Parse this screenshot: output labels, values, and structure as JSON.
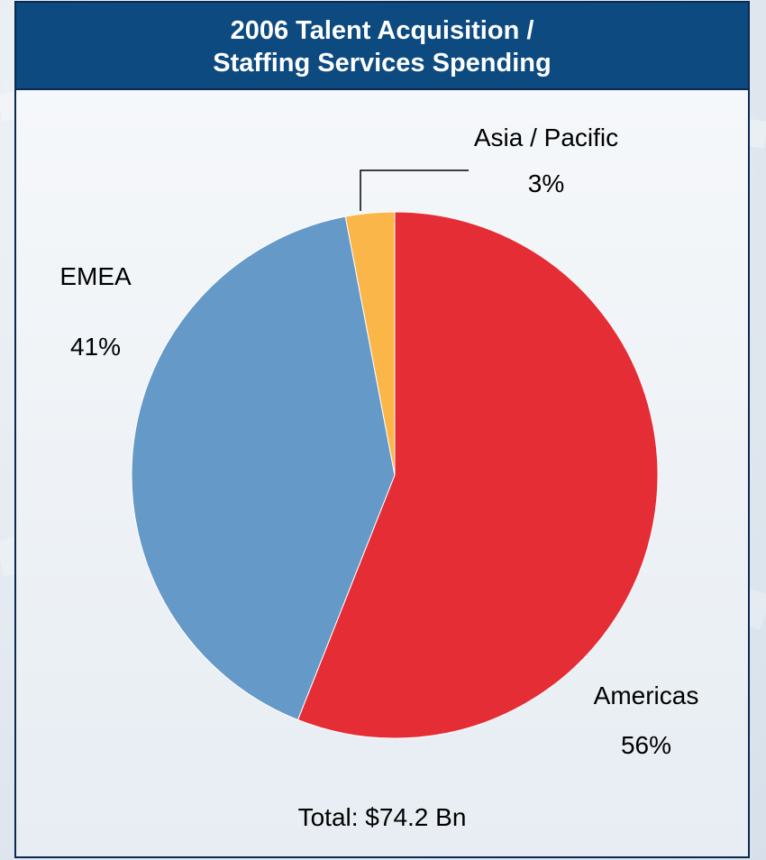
{
  "chart_data": {
    "type": "pie",
    "title_lines": [
      "2006 Talent Acquisition /",
      "Staffing Services Spending"
    ],
    "slices": [
      {
        "name": "Americas",
        "value": 56,
        "label": "56%",
        "color": "#e52d36"
      },
      {
        "name": "EMEA",
        "value": 41,
        "label": "41%",
        "color": "#6599c8"
      },
      {
        "name": "Asia / Pacific",
        "value": 3,
        "label": "3%",
        "color": "#fbb64a"
      }
    ],
    "total_label": "Total: $74.2 Bn"
  }
}
